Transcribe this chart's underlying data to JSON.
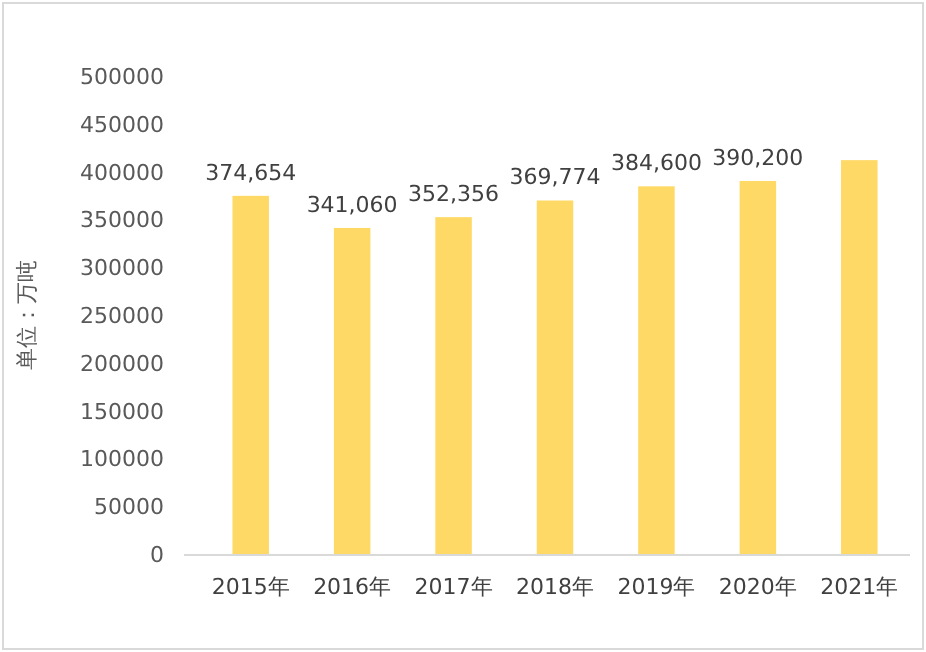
{
  "chart_data": {
    "type": "bar",
    "ylabel": "单位：万吨",
    "categories": [
      "2015年",
      "2016年",
      "2017年",
      "2018年",
      "2019年",
      "2020年",
      "2021年"
    ],
    "values": [
      374654,
      341060,
      352356,
      369774,
      384600,
      390200,
      412000
    ],
    "value_labels": [
      "374,654",
      "341,060",
      "352,356",
      "369,774",
      "384,600",
      "390,200",
      null
    ],
    "color": "#ffd966",
    "ylim": [
      0,
      500000
    ],
    "yticks": [
      0,
      50000,
      100000,
      150000,
      200000,
      250000,
      300000,
      350000,
      400000,
      450000,
      500000
    ],
    "grid": false
  }
}
